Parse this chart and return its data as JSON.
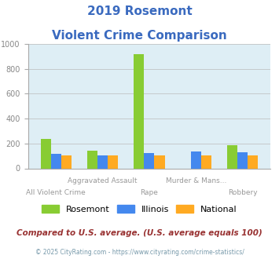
{
  "title_line1": "2019 Rosemont",
  "title_line2": "Violent Crime Comparison",
  "title_color": "#3a6abf",
  "categories": [
    "All Violent Crime",
    "Aggravated Assault",
    "Rape",
    "Murder & Mans...",
    "Robbery"
  ],
  "rosemont": [
    238,
    145,
    920,
    0,
    185
  ],
  "illinois": [
    115,
    105,
    120,
    133,
    128
  ],
  "national": [
    107,
    107,
    107,
    103,
    105
  ],
  "colors": {
    "rosemont": "#88cc33",
    "illinois": "#4488ee",
    "national": "#ffaa22"
  },
  "ylim": [
    0,
    1000
  ],
  "yticks": [
    0,
    200,
    400,
    600,
    800,
    1000
  ],
  "bg_color": "#deeef5",
  "footnote": "Compared to U.S. average. (U.S. average equals 100)",
  "copyright": "© 2025 CityRating.com - https://www.cityrating.com/crime-statistics/",
  "footnote_color": "#993333",
  "copyright_color": "#7799aa"
}
